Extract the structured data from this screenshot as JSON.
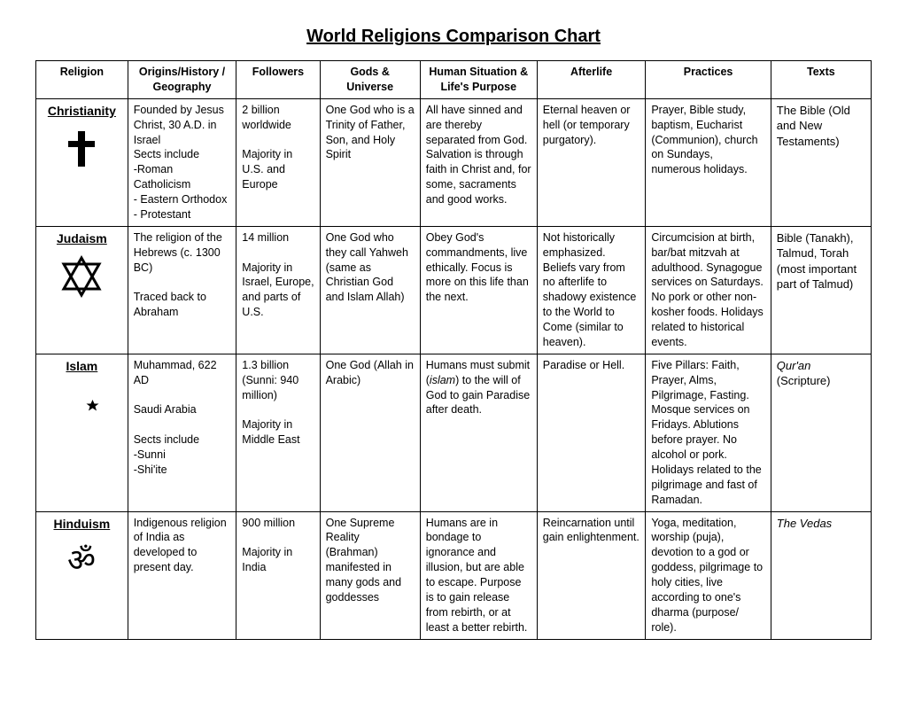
{
  "title": "World Religions Comparison Chart",
  "columns": [
    "Religion",
    "Origins/History / Geography",
    "Followers",
    "Gods & Universe",
    "Human Situation & Life's Purpose",
    "Afterlife",
    "Practices",
    "Texts"
  ],
  "rows": [
    {
      "religion": "Christianity",
      "symbol": "cross",
      "origins": "Founded by Jesus Christ, 30 A.D. in Israel\nSects include\n-Roman Catholicism\n- Eastern Orthodox\n- Protestant",
      "followers": "2 billion worldwide\n\nMajority in U.S. and Europe",
      "gods": "One God who is a Trinity of Father, Son, and Holy Spirit",
      "human": "All have sinned and are thereby separated from God. Salvation is through faith in Christ and, for some, sacraments and good works.",
      "afterlife": "Eternal heaven or hell (or temporary purgatory).",
      "practices": "Prayer, Bible study, baptism, Eucharist (Communion), church on Sundays, numerous holidays.",
      "texts": "The Bible (Old and New Testaments)"
    },
    {
      "religion": "Judaism",
      "symbol": "star-of-david",
      "origins": "The religion of the Hebrews (c. 1300 BC)\n\nTraced back to Abraham",
      "followers": "14 million\n\nMajority in Israel, Europe, and parts of U.S.",
      "gods": "One God who they call Yahweh (same as Christian God and Islam Allah)",
      "human": "Obey God's commandments, live ethically. Focus is more on this life than the next.",
      "afterlife": "Not historically emphasized. Beliefs vary from no afterlife to shadowy existence to the World to Come (similar to heaven).",
      "practices": "Circumcision at birth, bar/bat mitzvah at adulthood. Synagogue services on Saturdays. No pork or other non-kosher foods. Holidays related to historical events.",
      "texts": "Bible (Tanakh), Talmud, Torah (most important part of Talmud)"
    },
    {
      "religion": "Islam",
      "symbol": "crescent",
      "origins": "Muhammad, 622 AD\n\nSaudi Arabia\n\nSects include\n   -Sunni\n   -Shi'ite",
      "followers": "1.3 billion (Sunni: 940 million)\n\nMajority in Middle East",
      "gods": "One God (Allah in Arabic)",
      "human_html": "Humans must submit (<i>islam</i>) to the will of God to gain Paradise after death.",
      "afterlife": "Paradise or Hell.",
      "practices": "Five Pillars: Faith, Prayer, Alms, Pilgrimage, Fasting. Mosque services on Fridays. Ablutions before prayer. No alcohol or pork. Holidays related to the pilgrimage and fast of Ramadan.",
      "texts_html": "<i>Qur'an</i> (Scripture)"
    },
    {
      "religion": "Hinduism",
      "symbol": "om",
      "origins": "Indigenous religion of India as developed to present day.",
      "followers": "900 million\n\nMajority in India",
      "gods": "One Supreme Reality (Brahman) manifested in many gods and goddesses",
      "human": "Humans are in bondage to ignorance and illusion, but are able to escape. Purpose is to gain release from rebirth, or at least a better rebirth.",
      "afterlife": "Reincarnation until gain enlightenment.",
      "practices": "Yoga, meditation, worship (puja), devotion to a god or goddess, pilgrimage to holy cities, live according to one's dharma (purpose/ role).",
      "texts_html": "<i>The Vedas</i>"
    }
  ],
  "style": {
    "background_color": "#ffffff",
    "text_color": "#000000",
    "border_color": "#000000",
    "title_fontsize": 20,
    "header_fontsize": 12.5,
    "cell_fontsize": 12.5,
    "religion_name_fontsize": 14
  }
}
